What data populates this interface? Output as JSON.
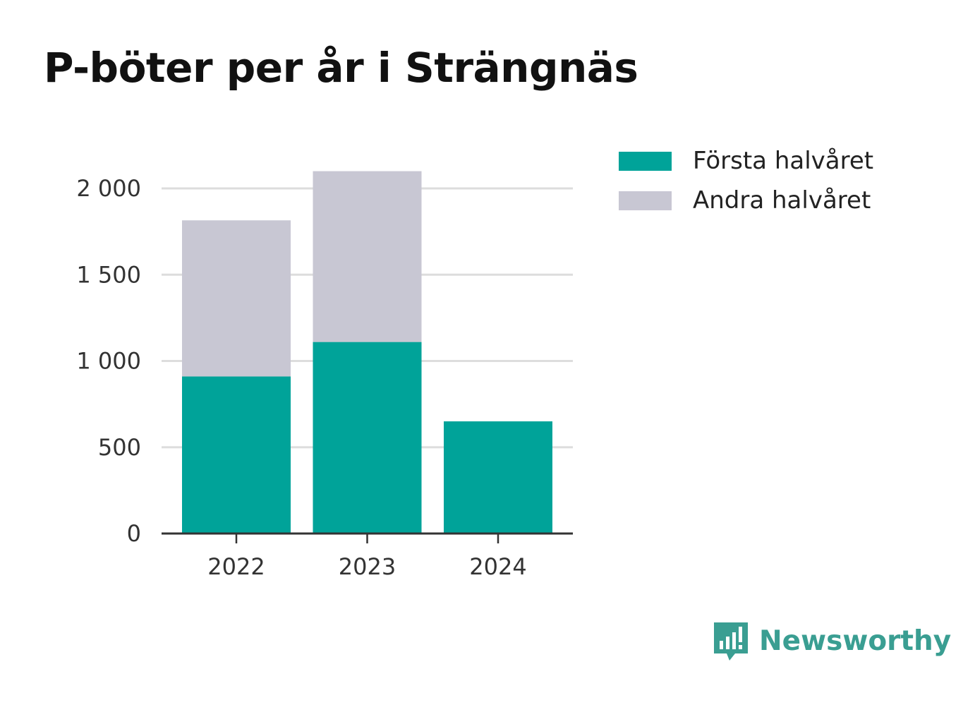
{
  "chart_data": {
    "type": "bar",
    "stacked": true,
    "title": "P-böter per år i Strängnäs",
    "categories": [
      "2022",
      "2023",
      "2024"
    ],
    "series": [
      {
        "name": "Första halvåret",
        "values": [
          910,
          1110,
          650
        ],
        "color": "#00a399"
      },
      {
        "name": "Andra halvåret",
        "values": [
          905,
          990,
          0
        ],
        "color": "#c8c7d3"
      }
    ],
    "yticks": [
      0,
      500,
      1000,
      1500,
      2000
    ],
    "ytick_labels": [
      "0",
      "500",
      "1 000",
      "1 500",
      "2 000"
    ],
    "ylim": [
      0,
      2100
    ],
    "xlabel": "",
    "ylabel": "",
    "grid": true,
    "legend_position": "top-right"
  },
  "brand": {
    "name": "Newsworthy",
    "icon": "newsworthy-logo-icon",
    "color": "#3a9e92"
  }
}
